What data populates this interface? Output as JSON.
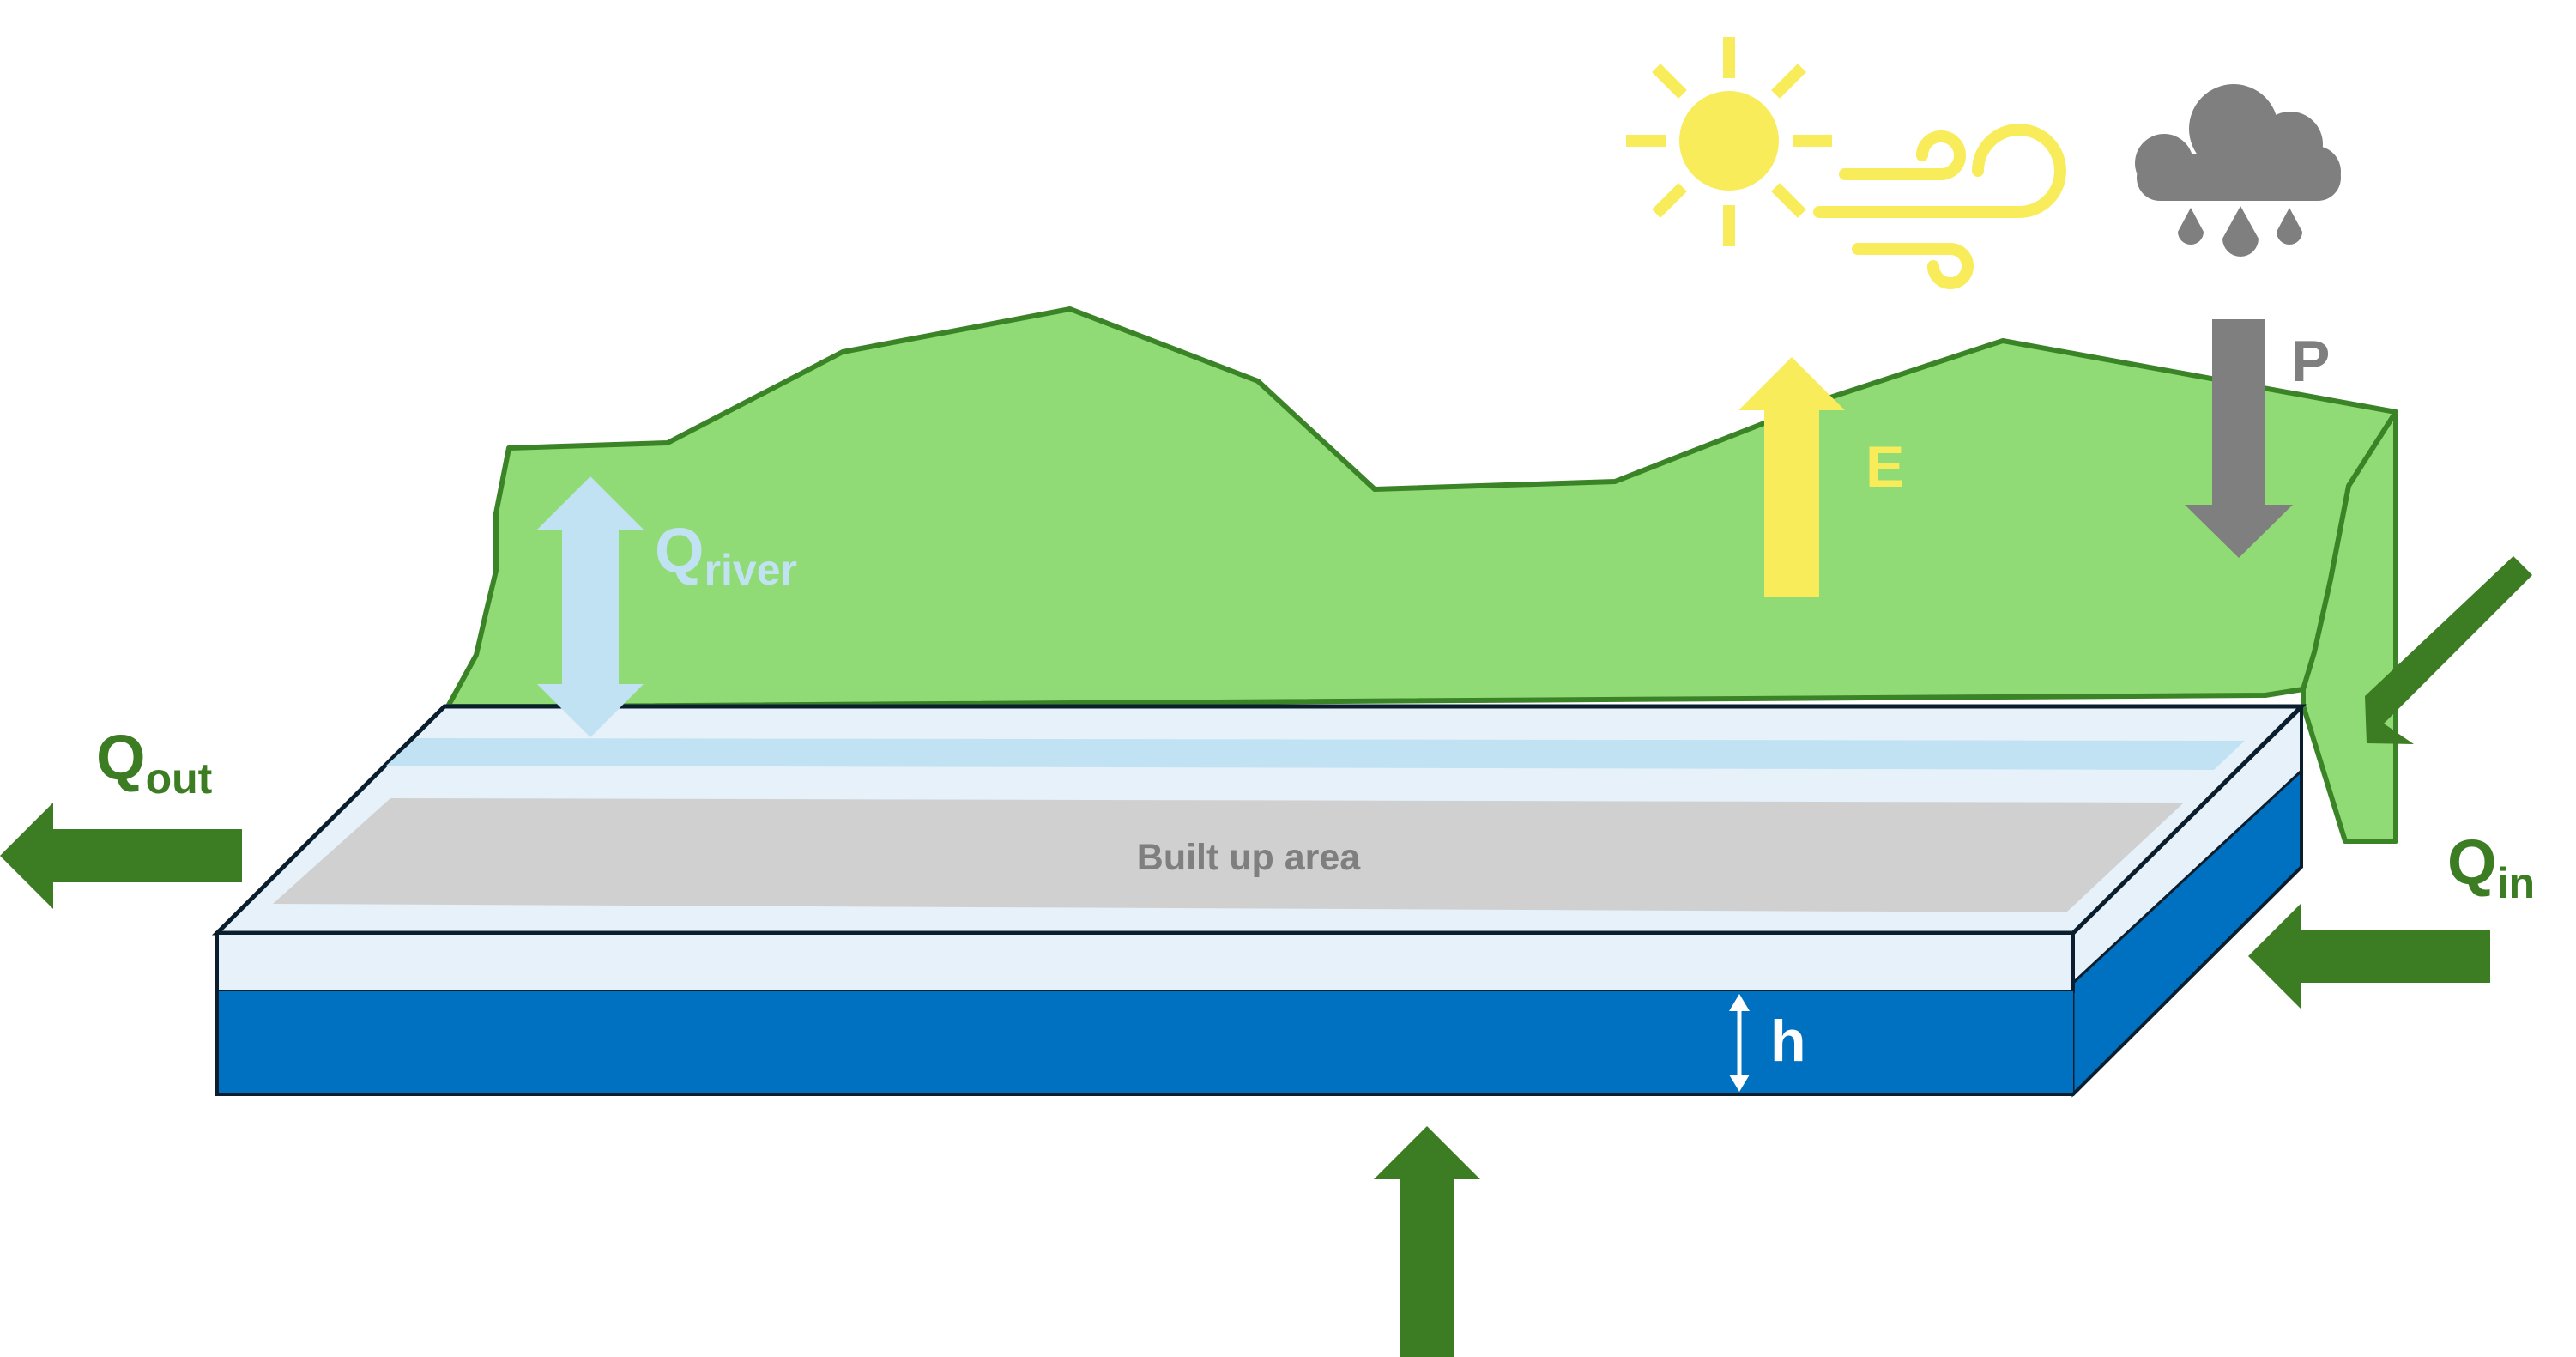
{
  "labels": {
    "q_river": {
      "main": "Q",
      "sub": "river"
    },
    "q_out": {
      "main": "Q",
      "sub": "out"
    },
    "q_in": {
      "main": "Q",
      "sub": "in"
    },
    "evaporation": "E",
    "precipitation": "P",
    "head": "h",
    "built_up_area": "Built up area"
  },
  "icons": [
    "sun-icon",
    "wind-icon",
    "rain-cloud-icon"
  ],
  "colors": {
    "terrain_fill": "#90DB76",
    "terrain_stroke": "#3A8427",
    "inflow_outflow_arrows": "#3C7C22",
    "river_arrow": "#C1E2F3",
    "evaporation": "#F8EC5B",
    "precipitation": "#7F7F7F",
    "aquifer_water": "#0070C0",
    "surface_layer": "#E6F1FA",
    "built_up_area": "#D0D0D0",
    "built_up_text": "#7F7F7F",
    "outline": "#0B1E2D"
  }
}
